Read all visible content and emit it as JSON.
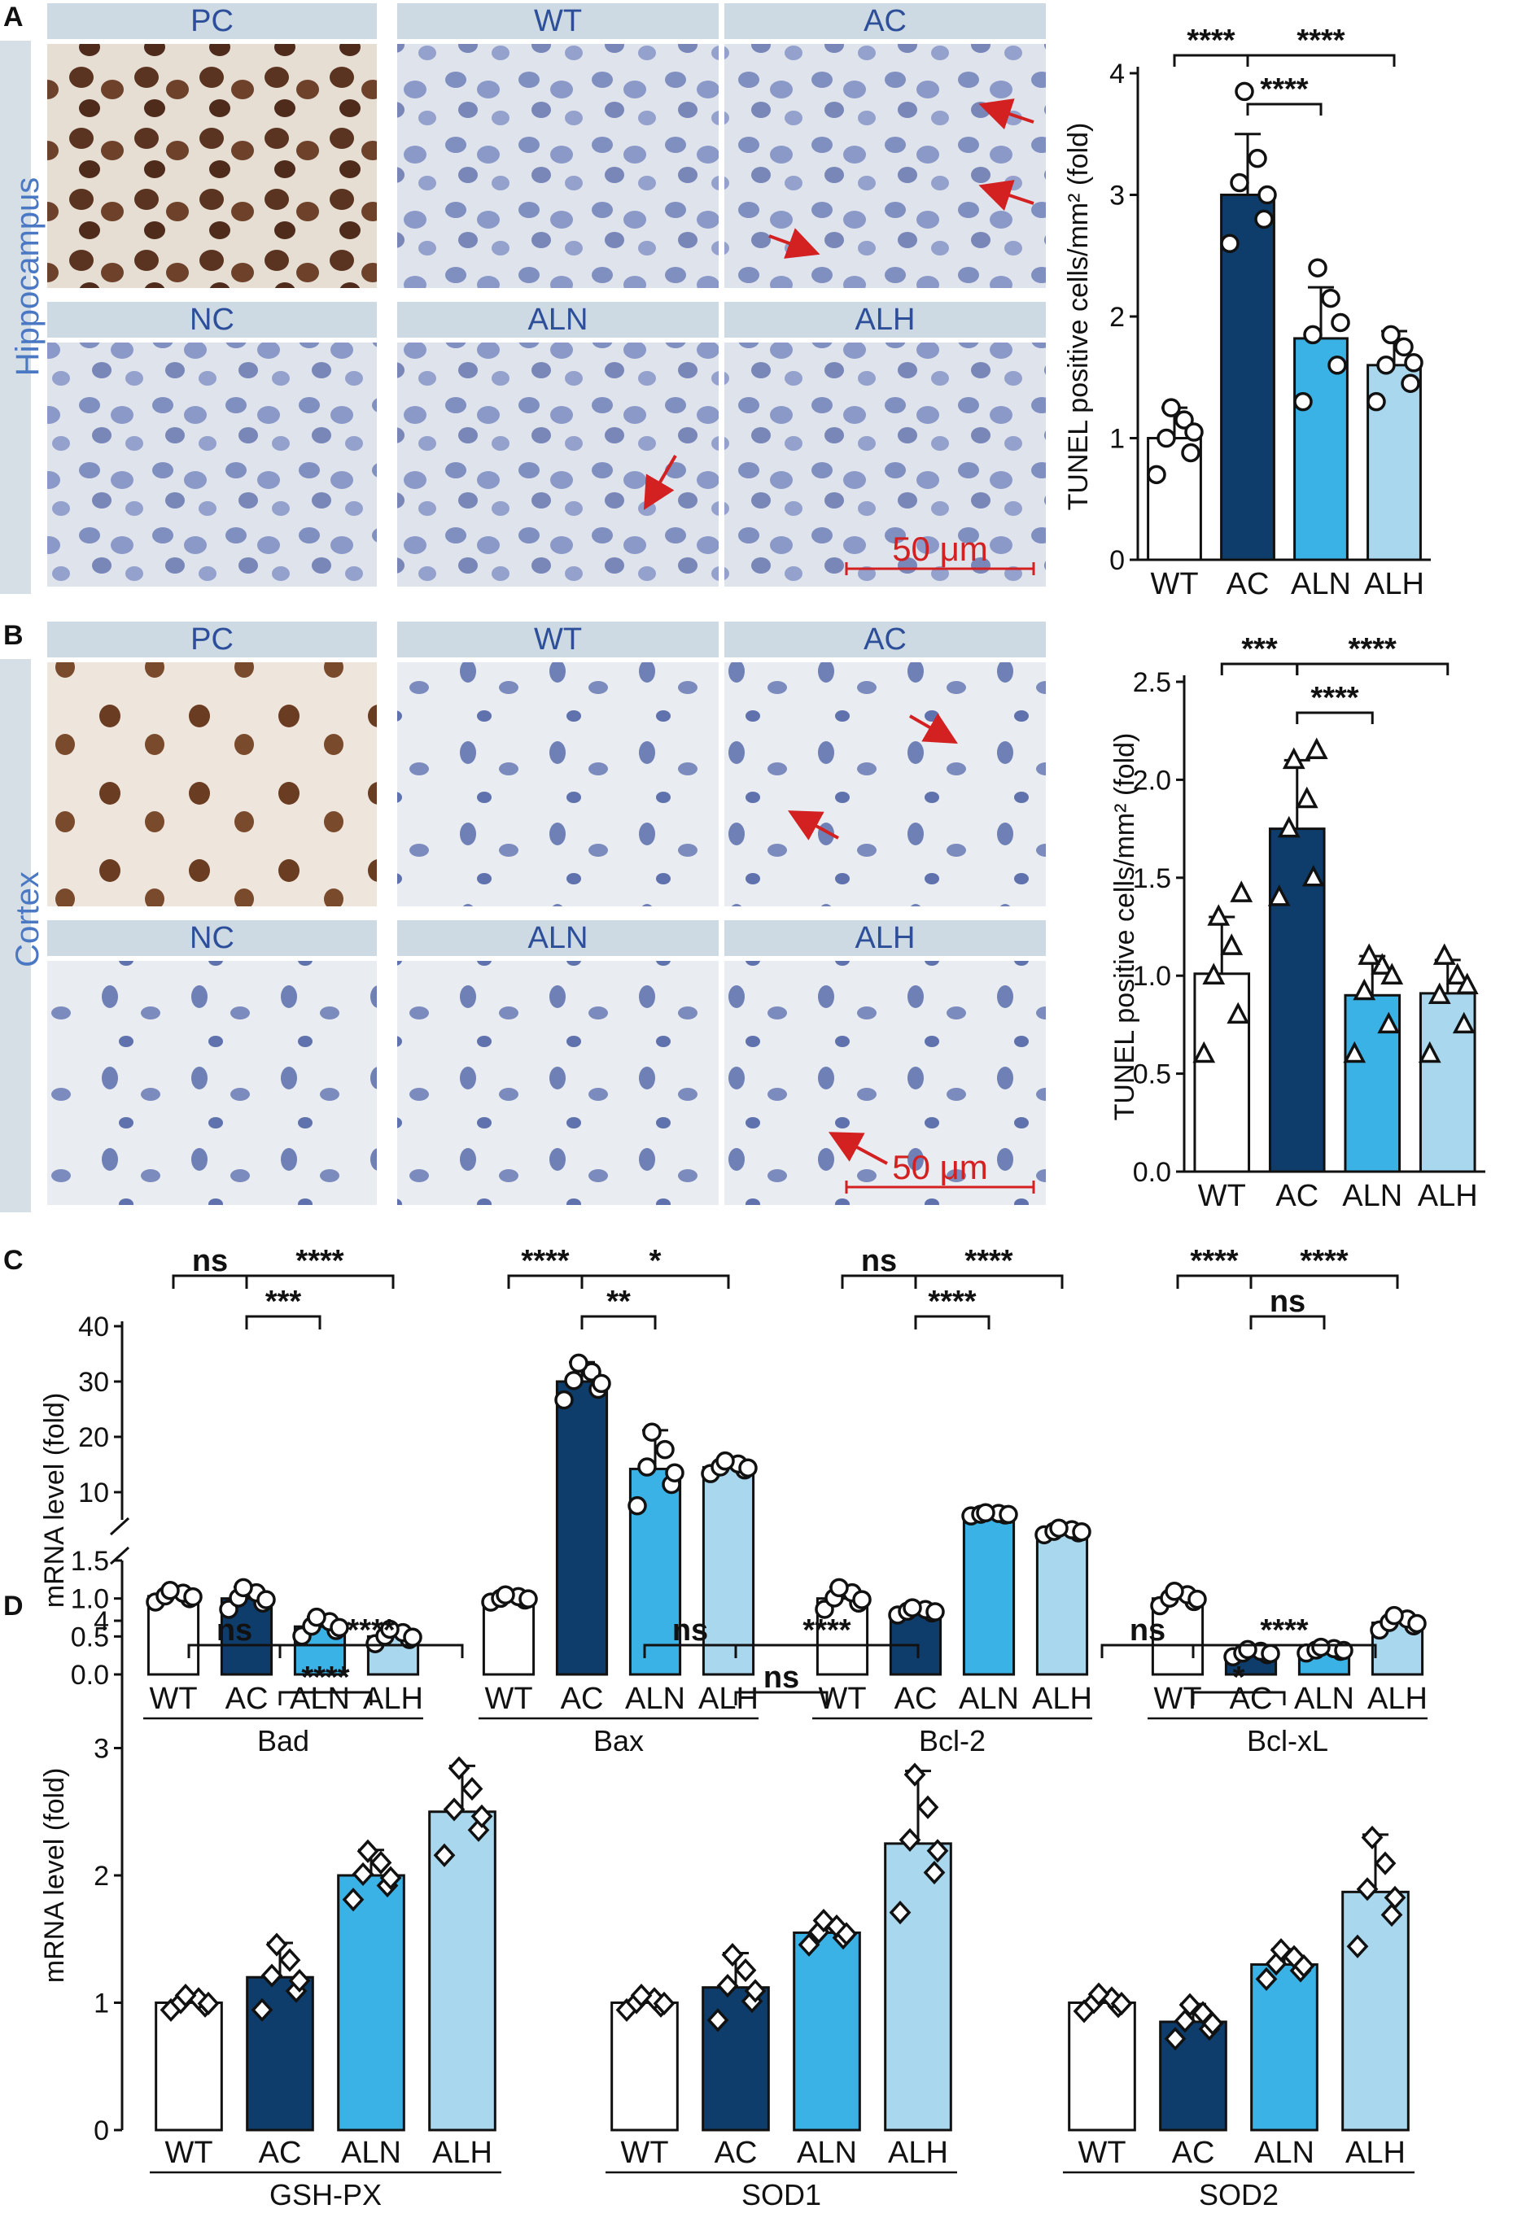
{
  "panels": {
    "A": {
      "letter": "A",
      "side_label": "Hippocampus",
      "scale_label": "50 μm",
      "captions": [
        "PC",
        "WT",
        "AC",
        "NC",
        "ALN",
        "ALH"
      ]
    },
    "B": {
      "letter": "B",
      "side_label": "Cortex",
      "scale_label": "50 μm",
      "captions": [
        "PC",
        "WT",
        "AC",
        "NC",
        "ALN",
        "ALH"
      ]
    },
    "C": {
      "letter": "C"
    },
    "D": {
      "letter": "D"
    }
  },
  "colors": {
    "WT": "#ffffff",
    "AC": "#0e3d6b",
    "ALN": "#3ab2e6",
    "ALH": "#a9d8ee",
    "caption_bg": "#cdd9e3",
    "arrow": "#d32020"
  },
  "chart_data": [
    {
      "id": "A",
      "type": "bar",
      "categories": [
        "WT",
        "AC",
        "ALN",
        "ALH"
      ],
      "values": [
        1.0,
        3.0,
        1.82,
        1.6
      ],
      "errors": [
        0.25,
        0.5,
        0.42,
        0.28
      ],
      "points": [
        [
          0.7,
          0.88,
          1.0,
          1.15,
          1.25,
          1.05
        ],
        [
          2.6,
          2.8,
          3.1,
          3.3,
          3.85,
          3.0
        ],
        [
          1.3,
          1.6,
          1.85,
          2.15,
          2.4,
          1.95
        ],
        [
          1.3,
          1.45,
          1.6,
          1.75,
          1.85,
          1.62
        ]
      ],
      "ylabel": "TUNEL positive cells/mm² (fold)",
      "ylim": [
        0,
        4
      ],
      "yticks": [
        "0",
        "1",
        "2",
        "3",
        "4"
      ],
      "marker": "circle",
      "significance": [
        {
          "from": "WT",
          "to": "AC",
          "label": "****"
        },
        {
          "from": "AC",
          "to": "ALH",
          "label": "****"
        },
        {
          "from": "AC",
          "to": "ALN",
          "label": "****"
        }
      ]
    },
    {
      "id": "B",
      "type": "bar",
      "categories": [
        "WT",
        "AC",
        "ALN",
        "ALH"
      ],
      "values": [
        1.01,
        1.75,
        0.9,
        0.91
      ],
      "errors": [
        0.29,
        0.35,
        0.2,
        0.17
      ],
      "points": [
        [
          0.6,
          0.8,
          1.0,
          1.15,
          1.3,
          1.42
        ],
        [
          1.4,
          1.5,
          1.75,
          1.9,
          2.1,
          2.15
        ],
        [
          0.6,
          0.75,
          0.92,
          1.05,
          1.1,
          1.0
        ],
        [
          0.6,
          0.75,
          0.9,
          1.0,
          1.1,
          0.95
        ]
      ],
      "ylabel": "TUNEL positive cells/mm² (fold)",
      "ylim": [
        0,
        2.5
      ],
      "yticks": [
        "0.0",
        "0.5",
        "1.0",
        "1.5",
        "2.0",
        "2.5"
      ],
      "marker": "triangle",
      "significance": [
        {
          "from": "WT",
          "to": "AC",
          "label": "***"
        },
        {
          "from": "AC",
          "to": "ALH",
          "label": "****"
        },
        {
          "from": "AC",
          "to": "ALN",
          "label": "****"
        }
      ]
    },
    {
      "id": "C",
      "type": "bar",
      "ylabel": "mRNA level (fold)",
      "axis_break": {
        "lower_ylim": [
          0,
          1.5
        ],
        "upper_ylim": [
          5,
          40
        ]
      },
      "yticks_lower": [
        "0.0",
        "0.5",
        "1.0",
        "1.5"
      ],
      "yticks_upper": [
        "10",
        "20",
        "30",
        "40"
      ],
      "marker": "circle",
      "groups": [
        {
          "name": "Bad",
          "categories": [
            "WT",
            "AC",
            "ALN",
            "ALH"
          ],
          "values": [
            1.03,
            1.0,
            0.63,
            0.5
          ],
          "errors": [
            0.08,
            0.15,
            0.13,
            0.1
          ],
          "significance": [
            {
              "from": "WT",
              "to": "AC",
              "label": "ns"
            },
            {
              "from": "AC",
              "to": "ALH",
              "label": "****"
            },
            {
              "from": "AC",
              "to": "ALN",
              "label": "***"
            }
          ]
        },
        {
          "name": "Bax",
          "categories": [
            "WT",
            "AC",
            "ALN",
            "ALH"
          ],
          "values": [
            1.0,
            30,
            14.2,
            14.5
          ],
          "errors": [
            0.05,
            3.5,
            7.0,
            1.2
          ],
          "significance": [
            {
              "from": "WT",
              "to": "AC",
              "label": "****"
            },
            {
              "from": "AC",
              "to": "ALH",
              "label": "*"
            },
            {
              "from": "AC",
              "to": "ALN",
              "label": "**"
            }
          ]
        },
        {
          "name": "Bcl-2",
          "categories": [
            "WT",
            "AC",
            "ALN",
            "ALH"
          ],
          "values": [
            1.0,
            0.83,
            6.0,
            4.0
          ],
          "errors": [
            0.15,
            0.05,
            0.3,
            0.3
          ],
          "significance": [
            {
              "from": "WT",
              "to": "AC",
              "label": "ns"
            },
            {
              "from": "AC",
              "to": "ALH",
              "label": "****"
            },
            {
              "from": "AC",
              "to": "ALN",
              "label": "****"
            }
          ]
        },
        {
          "name": "Bcl-xL",
          "categories": [
            "WT",
            "AC",
            "ALN",
            "ALH"
          ],
          "values": [
            1.0,
            0.28,
            0.32,
            0.68
          ],
          "errors": [
            0.1,
            0.05,
            0.04,
            0.1
          ],
          "significance": [
            {
              "from": "WT",
              "to": "AC",
              "label": "****"
            },
            {
              "from": "AC",
              "to": "ALH",
              "label": "****"
            },
            {
              "from": "AC",
              "to": "ALN",
              "label": "ns"
            }
          ]
        }
      ]
    },
    {
      "id": "D",
      "type": "bar",
      "ylabel": "mRNA level (fold)",
      "ylim": [
        0,
        4
      ],
      "yticks": [
        "0",
        "1",
        "2",
        "3",
        "4"
      ],
      "marker": "diamond",
      "groups": [
        {
          "name": "GSH-PX",
          "categories": [
            "WT",
            "AC",
            "ALN",
            "ALH"
          ],
          "values": [
            1.0,
            1.2,
            2.0,
            2.5
          ],
          "errors": [
            0.06,
            0.27,
            0.2,
            0.36
          ],
          "significance": [
            {
              "from": "WT",
              "to": "AC",
              "label": "ns"
            },
            {
              "from": "AC",
              "to": "ALH",
              "label": "****"
            },
            {
              "from": "AC",
              "to": "ALN",
              "label": "****"
            }
          ]
        },
        {
          "name": "SOD1",
          "categories": [
            "WT",
            "AC",
            "ALN",
            "ALH"
          ],
          "values": [
            1.0,
            1.12,
            1.55,
            2.25
          ],
          "errors": [
            0.06,
            0.27,
            0.1,
            0.57
          ],
          "significance": [
            {
              "from": "WT",
              "to": "AC",
              "label": "ns"
            },
            {
              "from": "AC",
              "to": "ALH",
              "label": "****"
            },
            {
              "from": "AC",
              "to": "ALN",
              "label": "ns"
            }
          ]
        },
        {
          "name": "SOD2",
          "categories": [
            "WT",
            "AC",
            "ALN",
            "ALH"
          ],
          "values": [
            1.0,
            0.85,
            1.3,
            1.87
          ],
          "errors": [
            0.07,
            0.14,
            0.12,
            0.45
          ],
          "significance": [
            {
              "from": "WT",
              "to": "AC",
              "label": "ns"
            },
            {
              "from": "AC",
              "to": "ALH",
              "label": "****"
            },
            {
              "from": "AC",
              "to": "ALN",
              "label": "*"
            }
          ]
        }
      ]
    }
  ]
}
